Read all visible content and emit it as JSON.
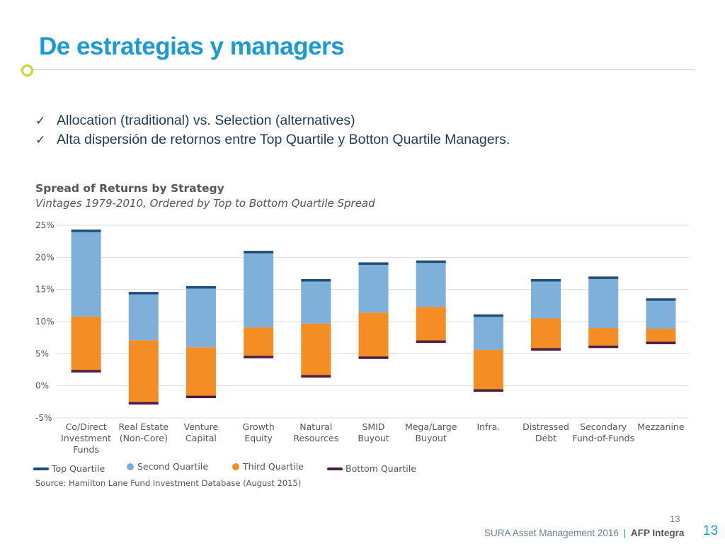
{
  "slide": {
    "title": "De estrategias y managers",
    "bullets": [
      "Allocation (traditional) vs. Selection (alternatives)",
      "Alta dispersión de retornos entre Top Quartile y Botton Quartile Managers."
    ],
    "check_icon": "checkmark-icon"
  },
  "chart_data": {
    "type": "bar",
    "title": "Spread of Returns by Strategy",
    "subtitle": "Vintages 1979-2010, Ordered by Top to Bottom Quartile Spread",
    "categories": [
      [
        "Co/Direct",
        "Investment",
        "Funds"
      ],
      [
        "Real Estate",
        "(Non-Core)"
      ],
      [
        "Venture",
        "Capital"
      ],
      [
        "Growth",
        "Equity"
      ],
      [
        "Natural",
        "Resources"
      ],
      [
        "SMID",
        "Buyout"
      ],
      [
        "Mega/Large",
        "Buyout"
      ],
      [
        "Infra."
      ],
      [
        "Distressed",
        "Debt"
      ],
      [
        "Secondary",
        "Fund-of-Funds"
      ],
      [
        "Mezzanine"
      ]
    ],
    "series": [
      {
        "name": "Top Quartile",
        "color": "#1f4e79",
        "values": [
          24.1,
          14.4,
          15.3,
          20.8,
          16.4,
          19.0,
          19.3,
          10.9,
          16.4,
          16.8,
          13.4
        ]
      },
      {
        "name": "Second Quartile",
        "color": "#7fb0d9",
        "values": [
          10.8,
          7.1,
          6.0,
          9.1,
          9.7,
          11.4,
          12.3,
          5.6,
          10.5,
          9.0,
          8.9
        ]
      },
      {
        "name": "Third Quartile",
        "color": "#f58d25",
        "values": [
          2.3,
          -2.7,
          -1.7,
          4.5,
          1.5,
          4.4,
          6.9,
          -0.7,
          5.7,
          6.1,
          6.7
        ]
      },
      {
        "name": "Bottom Quartile",
        "color": "#4b1c47",
        "values": [
          2.3,
          -2.7,
          -1.7,
          4.5,
          1.5,
          4.4,
          6.9,
          -0.7,
          5.7,
          6.1,
          6.7
        ]
      }
    ],
    "ylim": [
      -5,
      25
    ],
    "yticks": [
      -5,
      0,
      5,
      10,
      15,
      20,
      25
    ],
    "ytick_labels": [
      "-5%",
      "0%",
      "5%",
      "10%",
      "15%",
      "20%",
      "25%"
    ],
    "grid": "horizontal",
    "legend": "bottom",
    "source": "Source: Hamilton Lane Fund Investment Database (August 2015)"
  },
  "footer": {
    "page_small": "13",
    "company": "SURA Asset Management 2016",
    "separator": "|",
    "brand": "AFP Integra",
    "page_big": "13"
  }
}
